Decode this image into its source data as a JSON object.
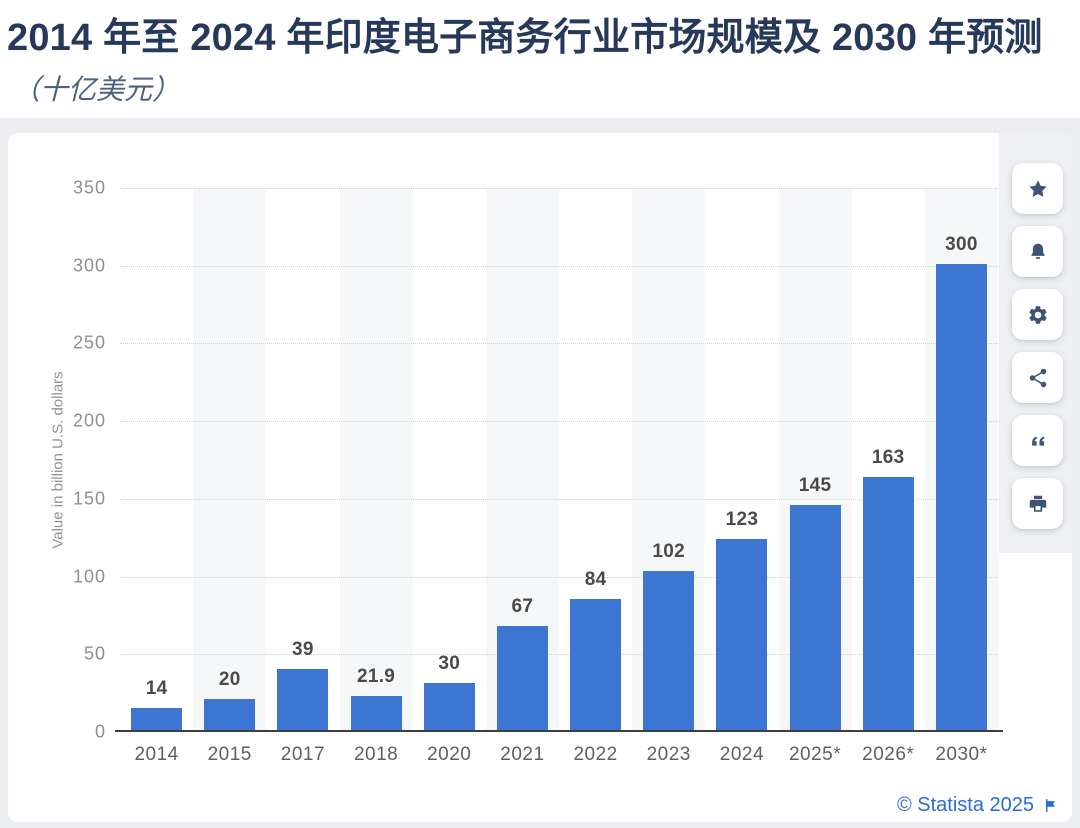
{
  "header": {
    "title": "2014 年至 2024 年印度电子商务行业市场规模及 2030 年预测",
    "subtitle": "（十亿美元）"
  },
  "chart_data": {
    "type": "bar",
    "title": "2014 年至 2024 年印度电子商务行业市场规模及 2030 年预测",
    "subtitle_unit": "（十亿美元）",
    "categories": [
      "2014",
      "2015",
      "2017",
      "2018",
      "2020",
      "2021",
      "2022",
      "2023",
      "2024",
      "2025*",
      "2026*",
      "2030*"
    ],
    "values": [
      14,
      20,
      39,
      21.9,
      30,
      67,
      84,
      102,
      123,
      145,
      163,
      300
    ],
    "value_labels": [
      "14",
      "20",
      "39",
      "21.9",
      "30",
      "67",
      "84",
      "102",
      "123",
      "145",
      "163",
      "300"
    ],
    "xlabel": "",
    "ylabel": "Value in billion U.S. dollars",
    "ylim": [
      0,
      350
    ],
    "yticks": [
      0,
      50,
      100,
      150,
      200,
      250,
      300,
      350
    ],
    "grid": "horizontal-dotted",
    "legend": "none",
    "band_pattern": "alternating light columns on odd categories",
    "bar_color": "#3d76d2",
    "band_color": "#f6f7f8"
  },
  "toolbar": {
    "items": [
      {
        "name": "favorite",
        "icon": "star-icon"
      },
      {
        "name": "alerts",
        "icon": "bell-icon"
      },
      {
        "name": "settings",
        "icon": "gear-icon"
      },
      {
        "name": "share",
        "icon": "share-icon"
      },
      {
        "name": "cite",
        "icon": "quote-icon"
      },
      {
        "name": "print",
        "icon": "printer-icon"
      }
    ]
  },
  "footer": {
    "credit": "© Statista 2025",
    "flag_icon": "flag-icon"
  },
  "colors": {
    "page_background": "#ecedf1",
    "card_background": "#ffffff",
    "title_text": "#27395a",
    "subtitle_text": "#4e6086",
    "bar": "#3d76d2",
    "column_band": "#f6f7f8",
    "axis_line": "#3e3e3e",
    "tick_text": "#8c8f94",
    "category_text": "#5d6066",
    "value_label_text": "#4a4a4a",
    "toolbar_icon": "#3e5472",
    "credit_link": "#2d6be0"
  }
}
